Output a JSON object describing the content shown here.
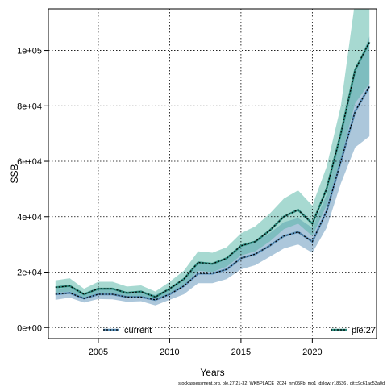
{
  "chart_data": {
    "type": "area",
    "xlabel": "Years",
    "ylabel": "SSB",
    "xlim": [
      2001.5,
      2024.5
    ],
    "ylim": [
      -4000,
      115000
    ],
    "xticks": [
      2005,
      2010,
      2015,
      2020
    ],
    "yticks": [
      0,
      20000,
      40000,
      60000,
      80000,
      100000
    ],
    "ytick_labels": [
      "0e+00",
      "2e+04",
      "4e+04",
      "6e+04",
      "8e+04",
      "1e+05"
    ],
    "grid": true,
    "footnote": "stockassessment.org, ple.27.21-32_WKBPLACE_2024_nm05Fb_mo1_dslow, r18536 , git:c9c61ac53a0d",
    "x": [
      2002,
      2003,
      2004,
      2005,
      2006,
      2007,
      2008,
      2009,
      2010,
      2011,
      2012,
      2013,
      2014,
      2015,
      2016,
      2017,
      2018,
      2019,
      2020,
      2021,
      2022,
      2023,
      2024
    ],
    "series": [
      {
        "name": "current",
        "color": "#5a8fb8",
        "band_color": "#5a8fb8",
        "values": [
          12000,
          12500,
          10500,
          12000,
          12000,
          11000,
          11000,
          10000,
          12000,
          15000,
          19500,
          19500,
          21000,
          25000,
          26500,
          29500,
          33000,
          34500,
          31000,
          42000,
          60000,
          78000,
          87000
        ],
        "lower": [
          10000,
          10800,
          9000,
          10300,
          10200,
          9300,
          9500,
          8000,
          10000,
          12000,
          16000,
          16000,
          17500,
          21000,
          22500,
          25500,
          28500,
          30000,
          27000,
          36000,
          52000,
          65000,
          69000
        ],
        "upper": [
          14000,
          14500,
          12200,
          13900,
          13900,
          12800,
          12700,
          11800,
          14200,
          18000,
          23000,
          23000,
          25000,
          29000,
          31000,
          34000,
          38000,
          39500,
          36000,
          48000,
          69000,
          92000,
          105000
        ]
      },
      {
        "name": "ple.27",
        "color": "#2e8b7e",
        "band_color": "#4fb3a3",
        "values": [
          14500,
          15000,
          12000,
          14000,
          14000,
          12500,
          13000,
          11000,
          14000,
          17500,
          23500,
          23000,
          25000,
          29500,
          31000,
          35000,
          40000,
          42500,
          37500,
          50000,
          70000,
          93000,
          103000
        ],
        "lower": [
          12500,
          13000,
          10400,
          12200,
          12200,
          10900,
          11300,
          9600,
          12200,
          15200,
          20500,
          20000,
          22000,
          26000,
          27500,
          31000,
          35500,
          37500,
          33000,
          44000,
          61000,
          81000,
          88000
        ],
        "upper": [
          17000,
          17800,
          14000,
          16500,
          16500,
          14800,
          15200,
          13000,
          16500,
          20500,
          27500,
          27000,
          29000,
          34000,
          36500,
          41000,
          46500,
          49500,
          44000,
          58000,
          80000,
          118000,
          120000
        ]
      }
    ]
  }
}
